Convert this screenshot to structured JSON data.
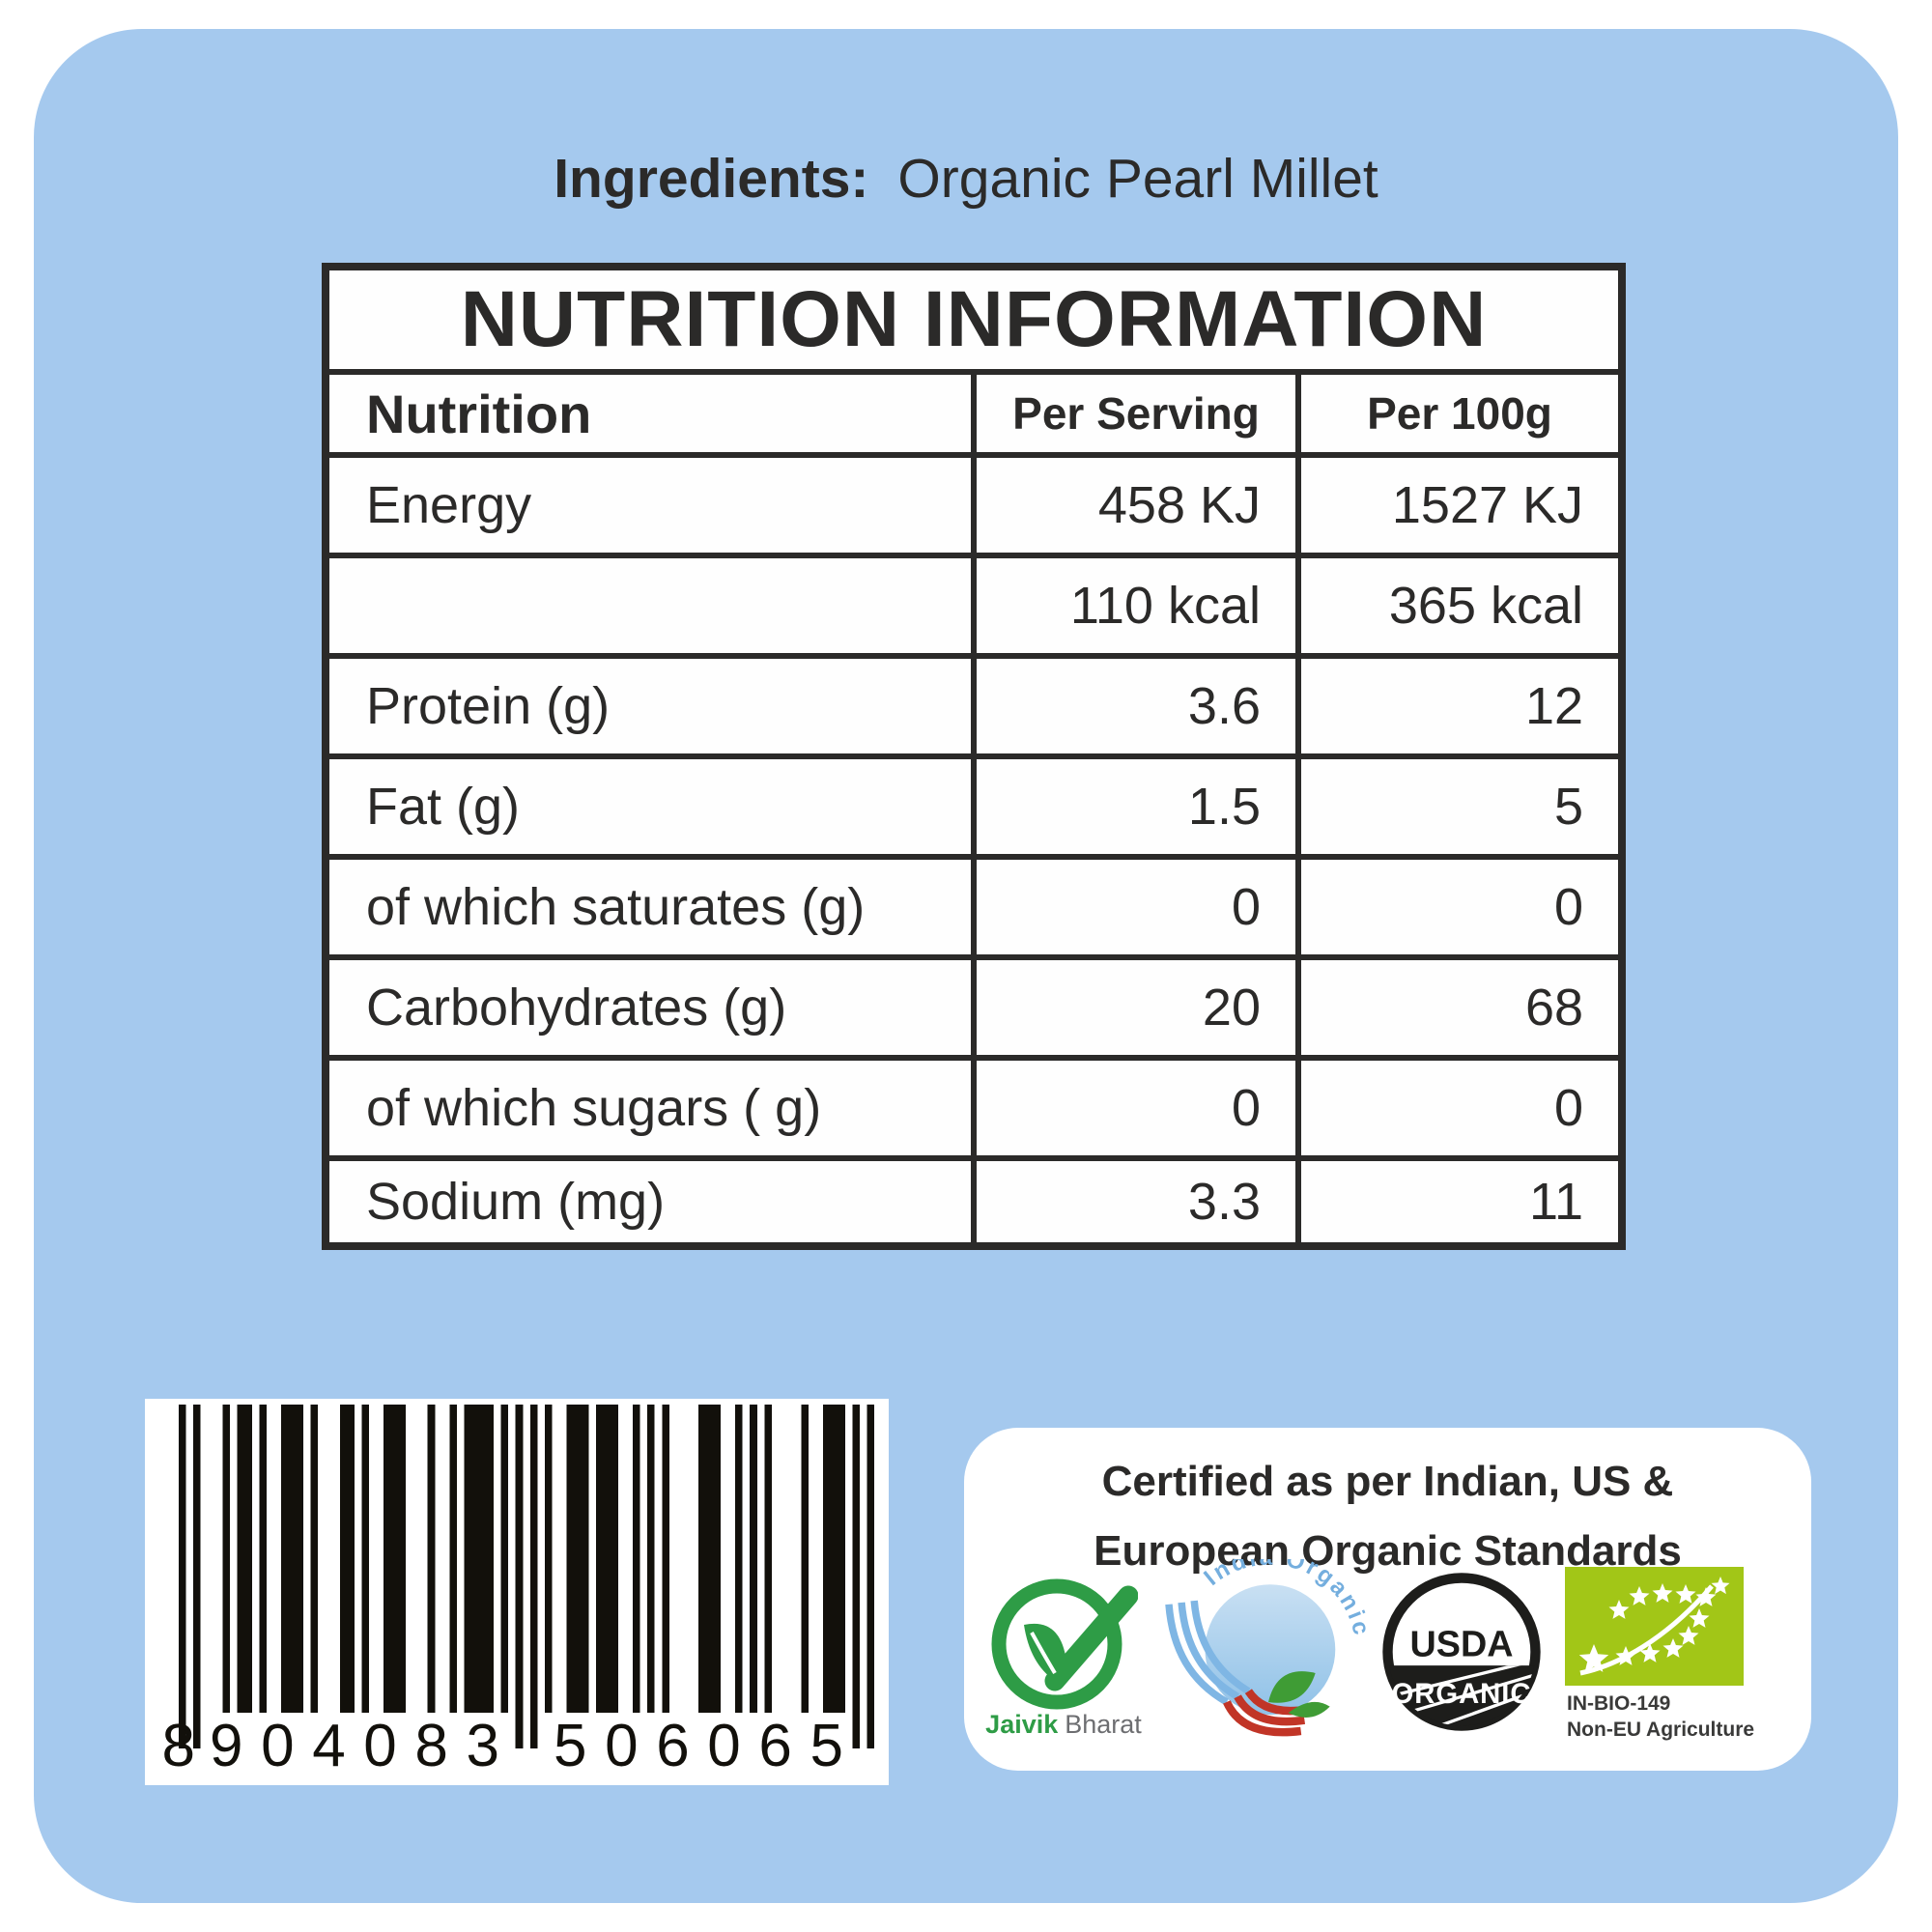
{
  "colors": {
    "panel_blue": "#a5c9ee",
    "ink_dark": "#2b2a29",
    "jaivik_green": "#2e9c46",
    "india_blue": "#7fb6e4",
    "india_red": "#c13527",
    "leaf_green": "#3f9c35",
    "usda_black": "#1d1d1b",
    "eu_green": "#a2c617"
  },
  "ingredients": {
    "label": "Ingredients:",
    "value": "Organic Pearl Millet"
  },
  "nutrition_table": {
    "title": "NUTRITION INFORMATION",
    "columns": [
      "Nutrition",
      "Per Serving",
      "Per 100g"
    ],
    "rows": [
      {
        "label": "Energy",
        "per_serving": "458 KJ",
        "per_100g": "1527 KJ"
      },
      {
        "label": "",
        "per_serving": "110 kcal",
        "per_100g": "365 kcal"
      },
      {
        "label": "Protein (g)",
        "per_serving": "3.6",
        "per_100g": "12"
      },
      {
        "label": "Fat (g)",
        "per_serving": "1.5",
        "per_100g": "5"
      },
      {
        "label": "of which saturates (g)",
        "per_serving": "0",
        "per_100g": "0"
      },
      {
        "label": "Carbohydrates (g)",
        "per_serving": "20",
        "per_100g": "68"
      },
      {
        "label": "of which sugars ( g)",
        "per_serving": "0",
        "per_100g": "0"
      },
      {
        "label": "Sodium (mg)",
        "per_serving": "3.3",
        "per_100g": "11"
      }
    ]
  },
  "barcode": {
    "value": "8904083506065",
    "group1": "8",
    "group2": "904083",
    "group3": "506065"
  },
  "certification": {
    "title_line1": "Certified as per Indian, US &",
    "title_line2": "European Organic Standards",
    "logos": {
      "jaivik": {
        "name_bold": "Jaivik",
        "name_rest": "Bharat"
      },
      "india_organic": {
        "arc_text": "India Organic"
      },
      "usda": {
        "top": "USDA",
        "bottom": "ORGANIC"
      },
      "eu": {
        "code": "IN-BIO-149",
        "origin": "Non-EU Agriculture"
      }
    }
  }
}
